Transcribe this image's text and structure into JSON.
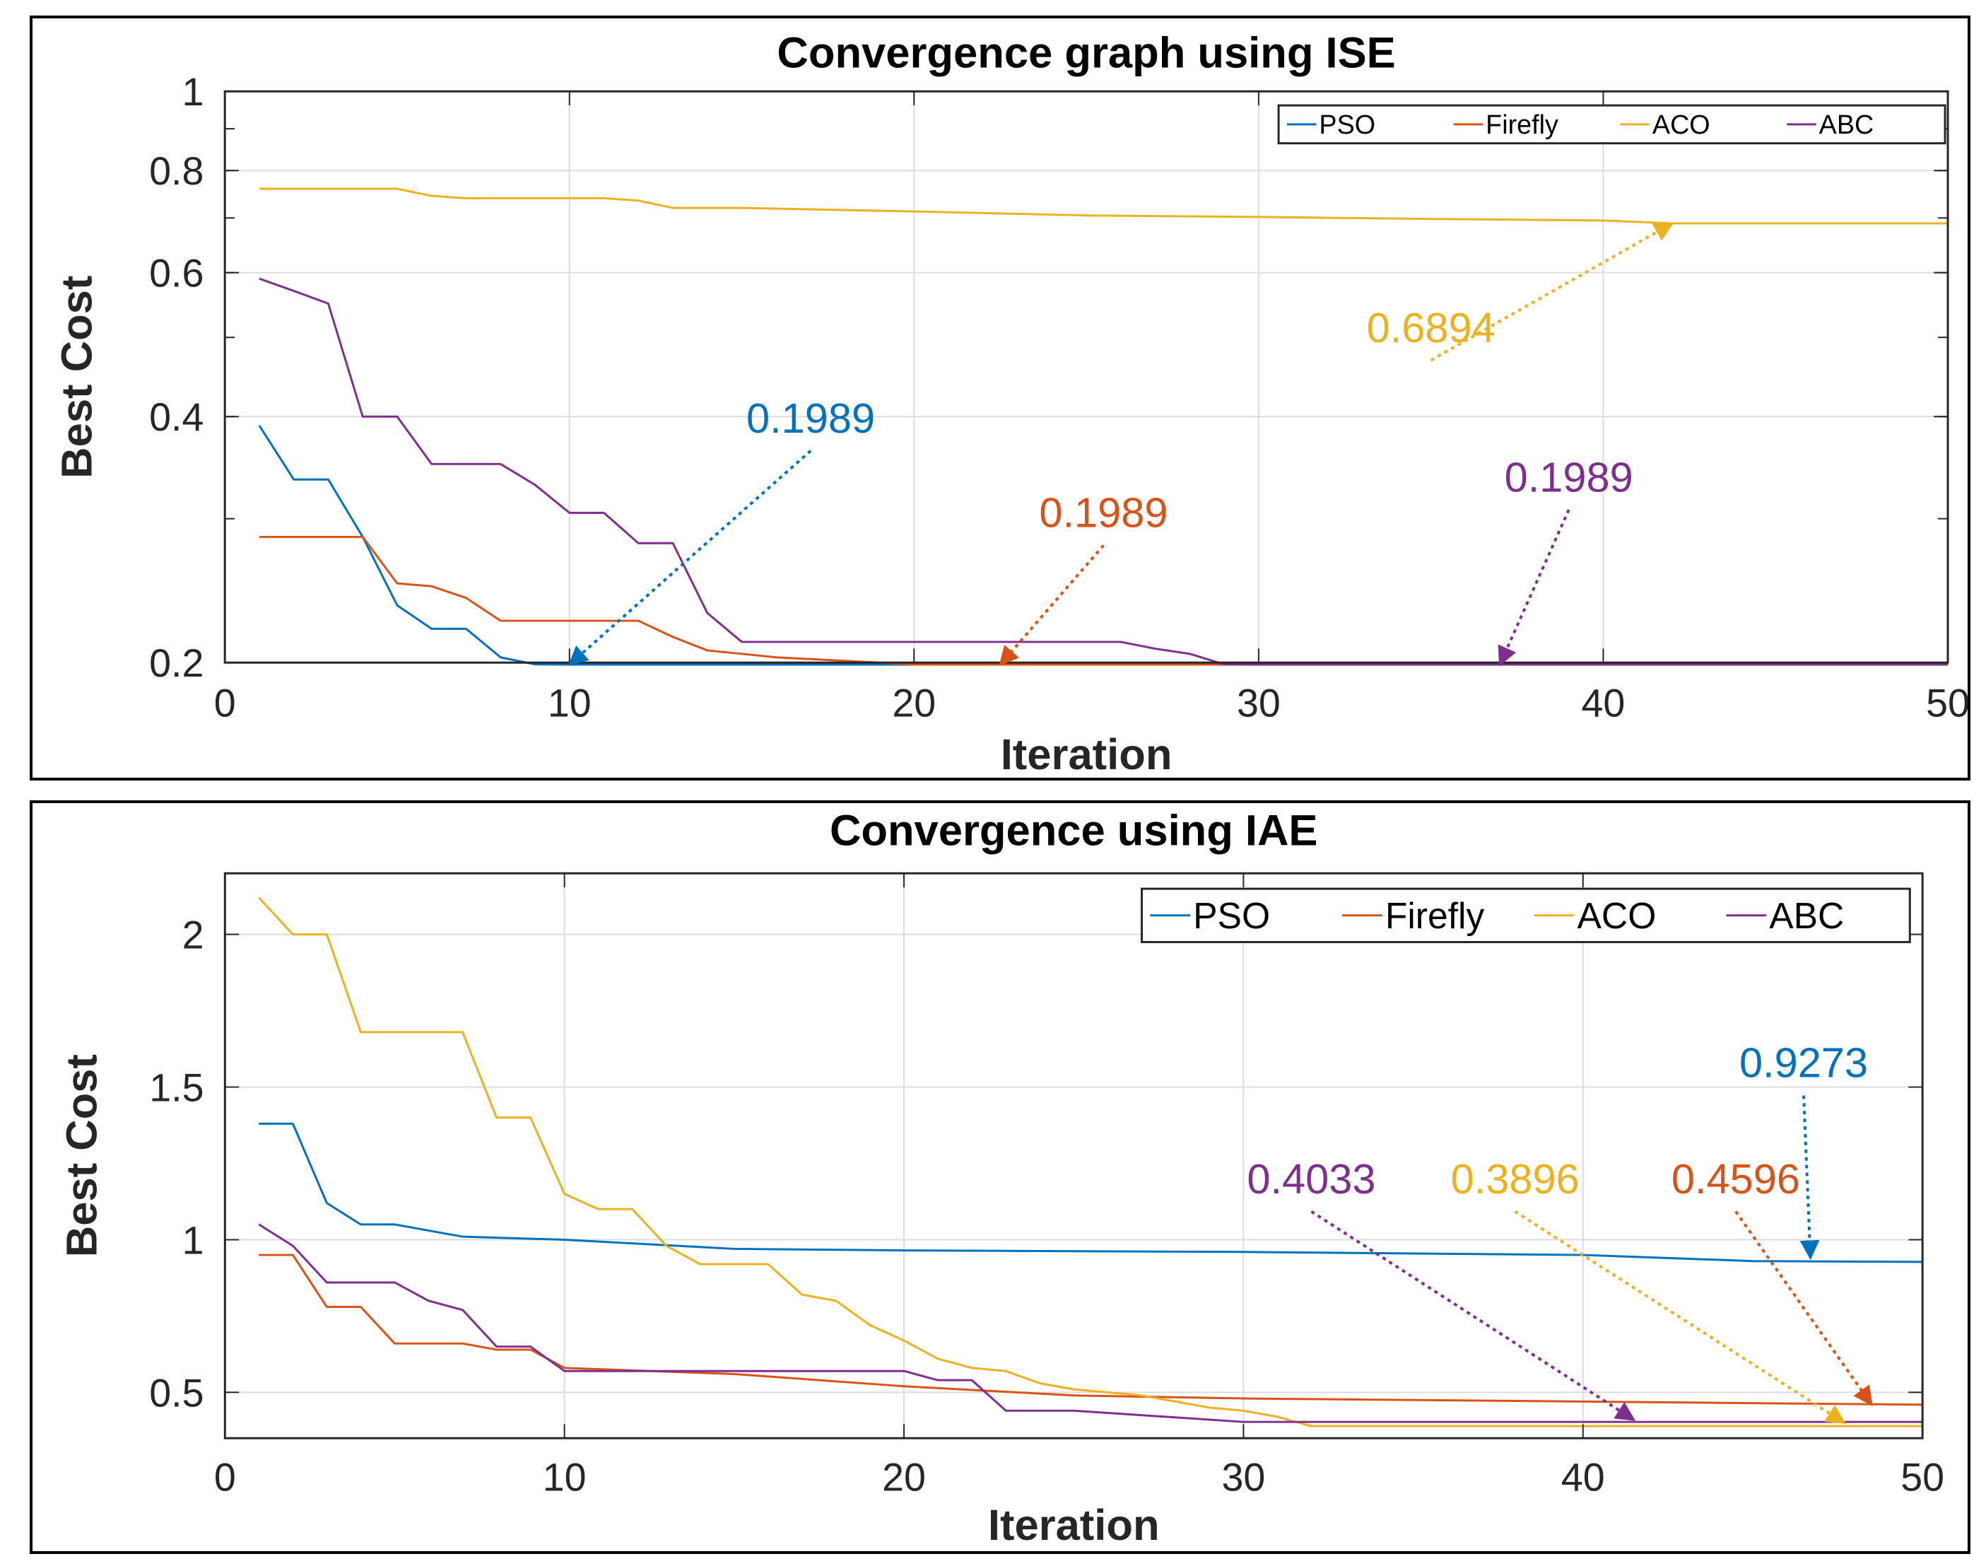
{
  "chart_data": [
    {
      "type": "line",
      "title": "Convergence graph using ISE",
      "xlabel": "Iteration",
      "ylabel": "Best Cost",
      "yscale": "log",
      "xlim": [
        0,
        50
      ],
      "ylim": [
        0.2,
        1
      ],
      "xticks": [
        0,
        10,
        20,
        30,
        40,
        50
      ],
      "xtick_labels": [
        "0",
        "10",
        "20",
        "30",
        "40",
        "50"
      ],
      "yticks": [
        0.2,
        0.4,
        0.6,
        0.8,
        1
      ],
      "ytick_labels": [
        "0.2",
        "0.4",
        "0.6",
        "0.8",
        "1"
      ],
      "grid": true,
      "legend_position": "top-right",
      "legend_orientation": "horizontal",
      "series": [
        {
          "name": "PSO",
          "color": "#0072BD",
          "x": [
            1,
            2,
            3,
            4,
            5,
            6,
            7,
            8,
            9,
            10,
            15,
            20,
            30,
            40,
            50
          ],
          "y": [
            0.39,
            0.335,
            0.335,
            0.285,
            0.235,
            0.22,
            0.22,
            0.203,
            0.199,
            0.1989,
            0.1989,
            0.1989,
            0.1989,
            0.1989,
            0.1989
          ]
        },
        {
          "name": "Firefly",
          "color": "#D95319",
          "x": [
            1,
            2,
            3,
            4,
            5,
            6,
            7,
            8,
            9,
            10,
            11,
            12,
            13,
            14,
            15,
            16,
            17,
            18,
            19,
            20,
            30,
            40,
            50
          ],
          "y": [
            0.285,
            0.285,
            0.285,
            0.285,
            0.25,
            0.248,
            0.24,
            0.225,
            0.225,
            0.225,
            0.225,
            0.225,
            0.215,
            0.207,
            0.205,
            0.203,
            0.202,
            0.201,
            0.2,
            0.1989,
            0.1989,
            0.1989,
            0.1989
          ]
        },
        {
          "name": "ACO",
          "color": "#EDB120",
          "x": [
            1,
            2,
            3,
            4,
            5,
            6,
            7,
            8,
            9,
            10,
            11,
            12,
            13,
            14,
            15,
            20,
            25,
            30,
            35,
            40,
            42,
            45,
            50
          ],
          "y": [
            0.76,
            0.76,
            0.76,
            0.76,
            0.76,
            0.745,
            0.74,
            0.74,
            0.74,
            0.74,
            0.74,
            0.735,
            0.72,
            0.72,
            0.72,
            0.713,
            0.705,
            0.702,
            0.698,
            0.695,
            0.6894,
            0.6894,
            0.6894
          ]
        },
        {
          "name": "ABC",
          "color": "#7E2F8E",
          "x": [
            1,
            2,
            3,
            4,
            5,
            6,
            7,
            8,
            9,
            10,
            11,
            12,
            13,
            14,
            15,
            20,
            25,
            26,
            27,
            28,
            29,
            30,
            40,
            50
          ],
          "y": [
            0.59,
            0.57,
            0.55,
            0.4,
            0.4,
            0.35,
            0.35,
            0.35,
            0.33,
            0.305,
            0.305,
            0.28,
            0.28,
            0.23,
            0.212,
            0.212,
            0.212,
            0.212,
            0.208,
            0.205,
            0.199,
            0.1989,
            0.1989,
            0.1989
          ]
        }
      ],
      "annotations": [
        {
          "text": "0.1989",
          "series": "PSO",
          "color": "#0072BD",
          "text_at": [
            17,
            0.372
          ],
          "arrow_to": [
            10,
            0.1989
          ]
        },
        {
          "text": "0.1989",
          "series": "Firefly",
          "color": "#D95319",
          "text_at": [
            25.5,
            0.285
          ],
          "arrow_to": [
            22.5,
            0.1989
          ]
        },
        {
          "text": "0.1989",
          "series": "ABC",
          "color": "#7E2F8E",
          "text_at": [
            39,
            0.315
          ],
          "arrow_to": [
            37,
            0.1989
          ]
        },
        {
          "text": "0.6894",
          "series": "ACO",
          "color": "#EDB120",
          "text_at": [
            35,
            0.48
          ],
          "arrow_to": [
            42,
            0.6894
          ]
        }
      ]
    },
    {
      "type": "line",
      "title": "Convergence using IAE",
      "xlabel": "Iteration",
      "ylabel": "Best Cost",
      "xlim": [
        0,
        50
      ],
      "ylim": [
        0.35,
        2.2
      ],
      "xticks": [
        0,
        10,
        20,
        30,
        40,
        50
      ],
      "xtick_labels": [
        "0",
        "10",
        "20",
        "30",
        "40",
        "50"
      ],
      "yticks": [
        0.5,
        1,
        1.5,
        2
      ],
      "ytick_labels": [
        "0.5",
        "1",
        "1.5",
        "2"
      ],
      "grid": true,
      "legend_position": "top-right",
      "legend_orientation": "horizontal",
      "series": [
        {
          "name": "PSO",
          "color": "#0072BD",
          "x": [
            1,
            2,
            3,
            4,
            5,
            6,
            7,
            10,
            15,
            20,
            30,
            40,
            45,
            50
          ],
          "y": [
            1.38,
            1.38,
            1.12,
            1.05,
            1.05,
            1.03,
            1.01,
            1.0,
            0.97,
            0.965,
            0.96,
            0.95,
            0.93,
            0.9273
          ]
        },
        {
          "name": "Firefly",
          "color": "#D95319",
          "x": [
            1,
            2,
            3,
            4,
            5,
            6,
            7,
            8,
            9,
            10,
            15,
            20,
            25,
            30,
            40,
            50
          ],
          "y": [
            0.95,
            0.95,
            0.78,
            0.78,
            0.66,
            0.66,
            0.66,
            0.64,
            0.64,
            0.58,
            0.56,
            0.52,
            0.49,
            0.48,
            0.47,
            0.4596
          ]
        },
        {
          "name": "ACO",
          "color": "#EDB120",
          "x": [
            1,
            2,
            3,
            4,
            5,
            6,
            7,
            8,
            9,
            10,
            11,
            12,
            13,
            14,
            15,
            16,
            17,
            18,
            19,
            20,
            21,
            22,
            23,
            24,
            25,
            26,
            27,
            28,
            29,
            30,
            31,
            32,
            40,
            50
          ],
          "y": [
            2.12,
            2.0,
            2.0,
            1.68,
            1.68,
            1.68,
            1.68,
            1.4,
            1.4,
            1.15,
            1.1,
            1.1,
            0.98,
            0.92,
            0.92,
            0.92,
            0.82,
            0.8,
            0.72,
            0.67,
            0.61,
            0.58,
            0.57,
            0.53,
            0.51,
            0.5,
            0.49,
            0.47,
            0.45,
            0.44,
            0.42,
            0.3896,
            0.3896,
            0.3896
          ]
        },
        {
          "name": "ABC",
          "color": "#7E2F8E",
          "x": [
            1,
            2,
            3,
            4,
            5,
            6,
            7,
            8,
            9,
            10,
            15,
            20,
            21,
            22,
            23,
            25,
            30,
            40,
            50
          ],
          "y": [
            1.05,
            0.98,
            0.86,
            0.86,
            0.86,
            0.8,
            0.77,
            0.65,
            0.65,
            0.57,
            0.57,
            0.57,
            0.54,
            0.54,
            0.44,
            0.44,
            0.4033,
            0.4033,
            0.4033
          ]
        }
      ],
      "annotations": [
        {
          "text": "0.9273",
          "series": "PSO",
          "color": "#0072BD",
          "text_at": [
            46.5,
            1.5
          ],
          "arrow_to": [
            46.7,
            0.94
          ]
        },
        {
          "text": "0.4033",
          "series": "ABC",
          "color": "#7E2F8E",
          "text_at": [
            32,
            1.12
          ],
          "arrow_to": [
            41.5,
            0.41
          ]
        },
        {
          "text": "0.3896",
          "series": "ACO",
          "color": "#EDB120",
          "text_at": [
            38,
            1.12
          ],
          "arrow_to": [
            47.7,
            0.4
          ]
        },
        {
          "text": "0.4596",
          "series": "Firefly",
          "color": "#D95319",
          "text_at": [
            44.5,
            1.12
          ],
          "arrow_to": [
            48.5,
            0.46
          ]
        }
      ]
    }
  ]
}
